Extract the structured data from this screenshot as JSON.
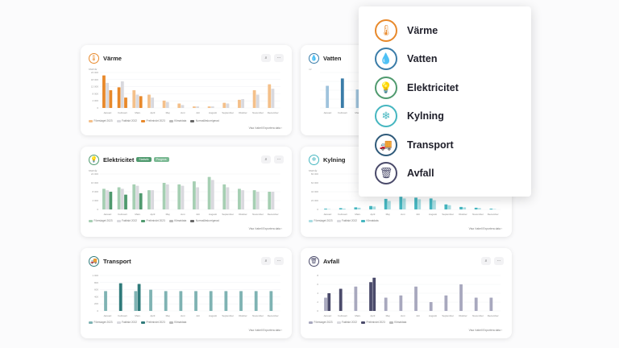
{
  "months_sv": [
    "Januari",
    "Februari",
    "Mars",
    "April",
    "Maj",
    "Juni",
    "Juli",
    "Augusti",
    "September",
    "Oktober",
    "November",
    "December"
  ],
  "cards": {
    "varme": {
      "title": "Värme",
      "color": "#e8892b",
      "light": "#f4c08a",
      "grey": "#d9d9de",
      "ytitle": "MWh/år",
      "yticks": [
        "24 000",
        "18 000",
        "12 000",
        "8 000",
        "4 000",
        "0"
      ],
      "legend": [
        "Föreslaget 2023",
        "Faktiskt 2022",
        "Preliminärt 2023",
        "Klimatdata",
        "Normalårskorrigerad"
      ],
      "footnote": "Visa i tabell  Exportera data  ›",
      "more": "···"
    },
    "vatten": {
      "title": "Vatten",
      "color": "#3a7ca8",
      "light": "#9fc3dc",
      "grey": "#d9d9de",
      "ytitle": "m³",
      "yticks": [
        "",
        "",
        "",
        "",
        ""
      ],
      "legend": [
        "",
        "",
        ""
      ],
      "more": "···"
    },
    "el": {
      "title": "Elektricitet",
      "badge1": "Statistik",
      "badge2": "Prognos",
      "color": "#4f9a6e",
      "light": "#a6cfb3",
      "grey": "#d9d9de",
      "ytitle": "MWh/år",
      "yticks": [
        "24 000",
        "16 000",
        "8 000",
        "4 000",
        "0"
      ],
      "legend": [
        "Föreslaget 2023",
        "Faktiskt 2022",
        "Preliminärt 2023",
        "Klimatdata",
        "Normalårskorrigerad"
      ],
      "footnote": "Visa i tabell  Exportera data  ›",
      "more": "···"
    },
    "kylning": {
      "title": "Kylning",
      "color": "#45b6c0",
      "light": "#a9dde2",
      "grey": "#d9d9de",
      "ytitle": "MWh/år",
      "yticks": [
        "84 000",
        "64 000",
        "44 000",
        "24 000",
        "0"
      ],
      "legend": [
        "Föreslaget 2023",
        "Faktiskt 2022",
        "Klimatdata"
      ],
      "footnote": "Visa i tabell  Exportera data  ›",
      "more": "···"
    },
    "transport": {
      "title": "Transport",
      "color": "#2f7a7a",
      "light": "#7fb3b3",
      "grey": "#d9d9de",
      "ytitle": "",
      "yticks": [
        "1 000",
        "800",
        "600",
        "400",
        "200",
        "0"
      ],
      "legend": [
        "Föreslaget 2023",
        "Faktiskt 2022",
        "Preliminärt 2023",
        "Klimatdata"
      ],
      "footnote": "Visa i tabell  Exportera data  ›",
      "more": "···"
    },
    "avfall": {
      "title": "Avfall",
      "color": "#4a4a6a",
      "light": "#a8a8be",
      "grey": "#d9d9de",
      "ytitle": "",
      "yticks": [
        "8",
        "6",
        "4",
        "2",
        "0"
      ],
      "legend": [
        "Föreslaget 2023",
        "Faktiskt 2022",
        "Preliminärt 2023",
        "Klimatdata"
      ],
      "footnote": "Visa i tabell  Exportera data  ›",
      "more": "···"
    }
  },
  "popup": {
    "items": [
      {
        "label": "Värme",
        "icon": "thermometer-icon",
        "color": "#e8892b",
        "glyph": "🌡"
      },
      {
        "label": "Vatten",
        "icon": "water-drop-icon",
        "color": "#3a7ca8",
        "glyph": "💧"
      },
      {
        "label": "Elektricitet",
        "icon": "lightbulb-icon",
        "color": "#4f9a6e",
        "glyph": "💡"
      },
      {
        "label": "Kylning",
        "icon": "snowflake-icon",
        "color": "#45b6c0",
        "glyph": "❄"
      },
      {
        "label": "Transport",
        "icon": "truck-icon",
        "color": "#2f5a7a",
        "glyph": "🚚"
      },
      {
        "label": "Avfall",
        "icon": "trash-icon",
        "color": "#4a4a6a",
        "glyph": "🗑"
      }
    ]
  },
  "chart_data": [
    {
      "type": "bar",
      "title": "Värme",
      "categories": [
        "Januari",
        "Februari",
        "Mars",
        "April",
        "Maj",
        "Juni",
        "Juli",
        "Augusti",
        "September",
        "Oktober",
        "November",
        "December"
      ],
      "ylim": [
        0,
        24000
      ],
      "series": [
        {
          "name": "Föreslaget 2023",
          "values": [
            22000,
            14000,
            12000,
            9000,
            5000,
            3000,
            1000,
            1000,
            3500,
            5500,
            12000,
            16000
          ]
        },
        {
          "name": "Faktiskt 2022",
          "values": [
            17000,
            18000,
            9000,
            7000,
            4000,
            2000,
            1000,
            1000,
            3000,
            6000,
            9000,
            13000
          ]
        },
        {
          "name": "Preliminärt 2023",
          "values": [
            12000,
            7000,
            8000,
            0,
            0,
            0,
            0,
            0,
            0,
            0,
            0,
            0
          ]
        }
      ]
    },
    {
      "type": "bar",
      "title": "Vatten",
      "categories": [
        "Januari",
        "Februari",
        "Mars",
        "April",
        "Maj",
        "Juni",
        "Juli",
        "Augusti",
        "September",
        "Oktober",
        "November",
        "December"
      ],
      "series": [
        {
          "values": [
            60,
            80,
            50,
            55,
            60,
            55,
            50,
            60,
            55,
            50,
            60,
            55
          ]
        }
      ]
    },
    {
      "type": "bar",
      "title": "Elektricitet",
      "categories": [
        "Januari",
        "Februari",
        "Mars",
        "April",
        "Maj",
        "Juni",
        "Juli",
        "Augusti",
        "September",
        "Oktober",
        "November",
        "December"
      ],
      "ylim": [
        0,
        24000
      ],
      "series": [
        {
          "name": "Föreslaget 2023",
          "values": [
            14000,
            15000,
            17000,
            13000,
            18000,
            17000,
            19000,
            22000,
            17000,
            14000,
            13000,
            12000
          ]
        },
        {
          "name": "Faktiskt 2022",
          "values": [
            13000,
            14000,
            16000,
            13000,
            17000,
            16000,
            15000,
            20000,
            15000,
            13000,
            12000,
            12000
          ]
        },
        {
          "name": "Preliminärt 2023",
          "values": [
            12000,
            10000,
            11000,
            0,
            0,
            0,
            0,
            0,
            0,
            0,
            0,
            0
          ]
        }
      ]
    },
    {
      "type": "bar",
      "title": "Kylning",
      "categories": [
        "Januari",
        "Februari",
        "Mars",
        "April",
        "Maj",
        "Juni",
        "Juli",
        "Augusti",
        "September",
        "Oktober",
        "November",
        "December"
      ],
      "ylim": [
        0,
        84000
      ],
      "series": [
        {
          "name": "Föreslaget 2023",
          "values": [
            2000,
            3000,
            5000,
            8000,
            25000,
            30000,
            28000,
            26000,
            12000,
            6000,
            4000,
            2000
          ]
        },
        {
          "name": "Faktiskt 2022",
          "values": [
            1000,
            2000,
            4000,
            7000,
            20000,
            26000,
            24000,
            22000,
            10000,
            5000,
            3000,
            1000
          ]
        }
      ]
    },
    {
      "type": "bar",
      "title": "Transport",
      "categories": [
        "Januari",
        "Februari",
        "Mars",
        "April",
        "Maj",
        "Juni",
        "Juli",
        "Augusti",
        "September",
        "Oktober",
        "November",
        "December"
      ],
      "ylim": [
        0,
        1000
      ],
      "series": [
        {
          "name": "Föreslaget 2023",
          "values": [
            560,
            780,
            560,
            600,
            560,
            560,
            560,
            560,
            560,
            560,
            560,
            560
          ]
        },
        {
          "name": "Preliminärt 2023",
          "values": [
            0,
            0,
            760,
            0,
            0,
            0,
            0,
            0,
            0,
            0,
            0,
            0
          ]
        }
      ]
    },
    {
      "type": "bar",
      "title": "Avfall",
      "categories": [
        "Januari",
        "Februari",
        "Mars",
        "April",
        "Maj",
        "Juni",
        "Juli",
        "Augusti",
        "September",
        "Oktober",
        "November",
        "December"
      ],
      "ylim": [
        0,
        8
      ],
      "series": [
        {
          "name": "Föreslaget 2023",
          "values": [
            3,
            5,
            5.5,
            6.5,
            3,
            3.5,
            5.5,
            2,
            3.5,
            6,
            3,
            3
          ]
        },
        {
          "name": "Faktiskt 2022",
          "values": [
            4,
            0,
            0,
            7.5,
            0,
            0,
            0,
            0,
            0,
            0,
            0,
            0
          ]
        }
      ]
    }
  ]
}
